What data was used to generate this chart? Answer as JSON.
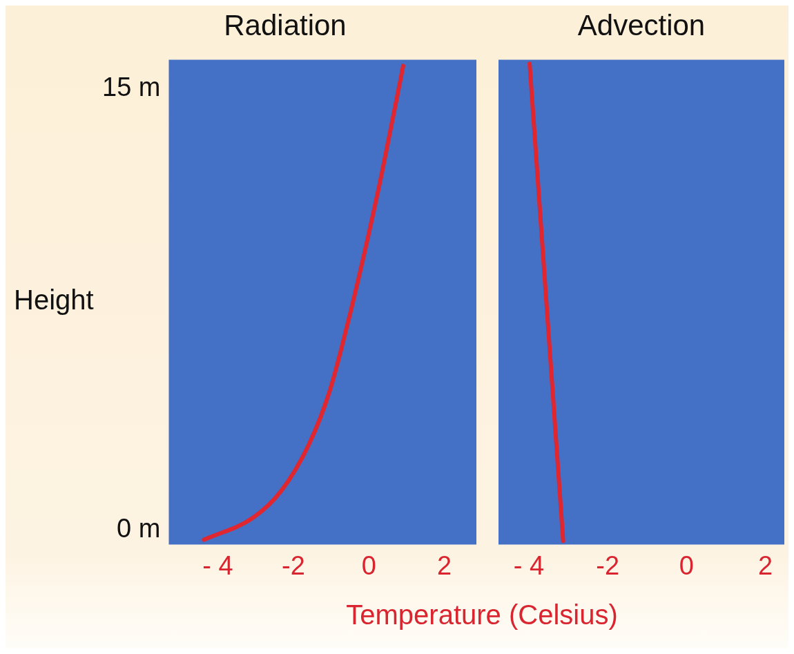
{
  "chart_data": [
    {
      "type": "line",
      "title": "Radiation",
      "xlabel": "Temperature (Celsius)",
      "ylabel": "Height",
      "xlim": [
        -5.3,
        2.85
      ],
      "xticks": [
        {
          "value": -4,
          "label": "- 4"
        },
        -2,
        0,
        2
      ],
      "ylim": [
        -0.5,
        16
      ],
      "yticks": [
        {
          "value": 15,
          "label": "15 m"
        },
        {
          "value": 0,
          "label": "0 m"
        }
      ],
      "grid": false,
      "legend": false,
      "marker": "none",
      "line_style": "solid",
      "series": [
        {
          "color": "#e0262f",
          "x": [
            -4.37,
            -3.07,
            -2.33,
            -1.59,
            -1.04,
            -0.57,
            -0.11,
            0.35,
            0.91
          ],
          "values": [
            -0.34,
            0.41,
            1.31,
            2.9,
            4.71,
            6.97,
            9.46,
            12.17,
            15.79
          ]
        }
      ]
    },
    {
      "type": "line",
      "title": "Advection",
      "xlim": [
        -4.77,
        2.48
      ],
      "xticks": [
        {
          "value": -4,
          "label": "- 4"
        },
        -2,
        0,
        2
      ],
      "ylim": [
        -0.5,
        16
      ],
      "tick_labels": "x",
      "grid": false,
      "legend": false,
      "marker": "none",
      "line_style": "solid",
      "series": [
        {
          "color": "#e0262f",
          "x": [
            -3.98,
            -3.13
          ],
          "values": [
            15.86,
            -0.38
          ]
        }
      ]
    }
  ]
}
